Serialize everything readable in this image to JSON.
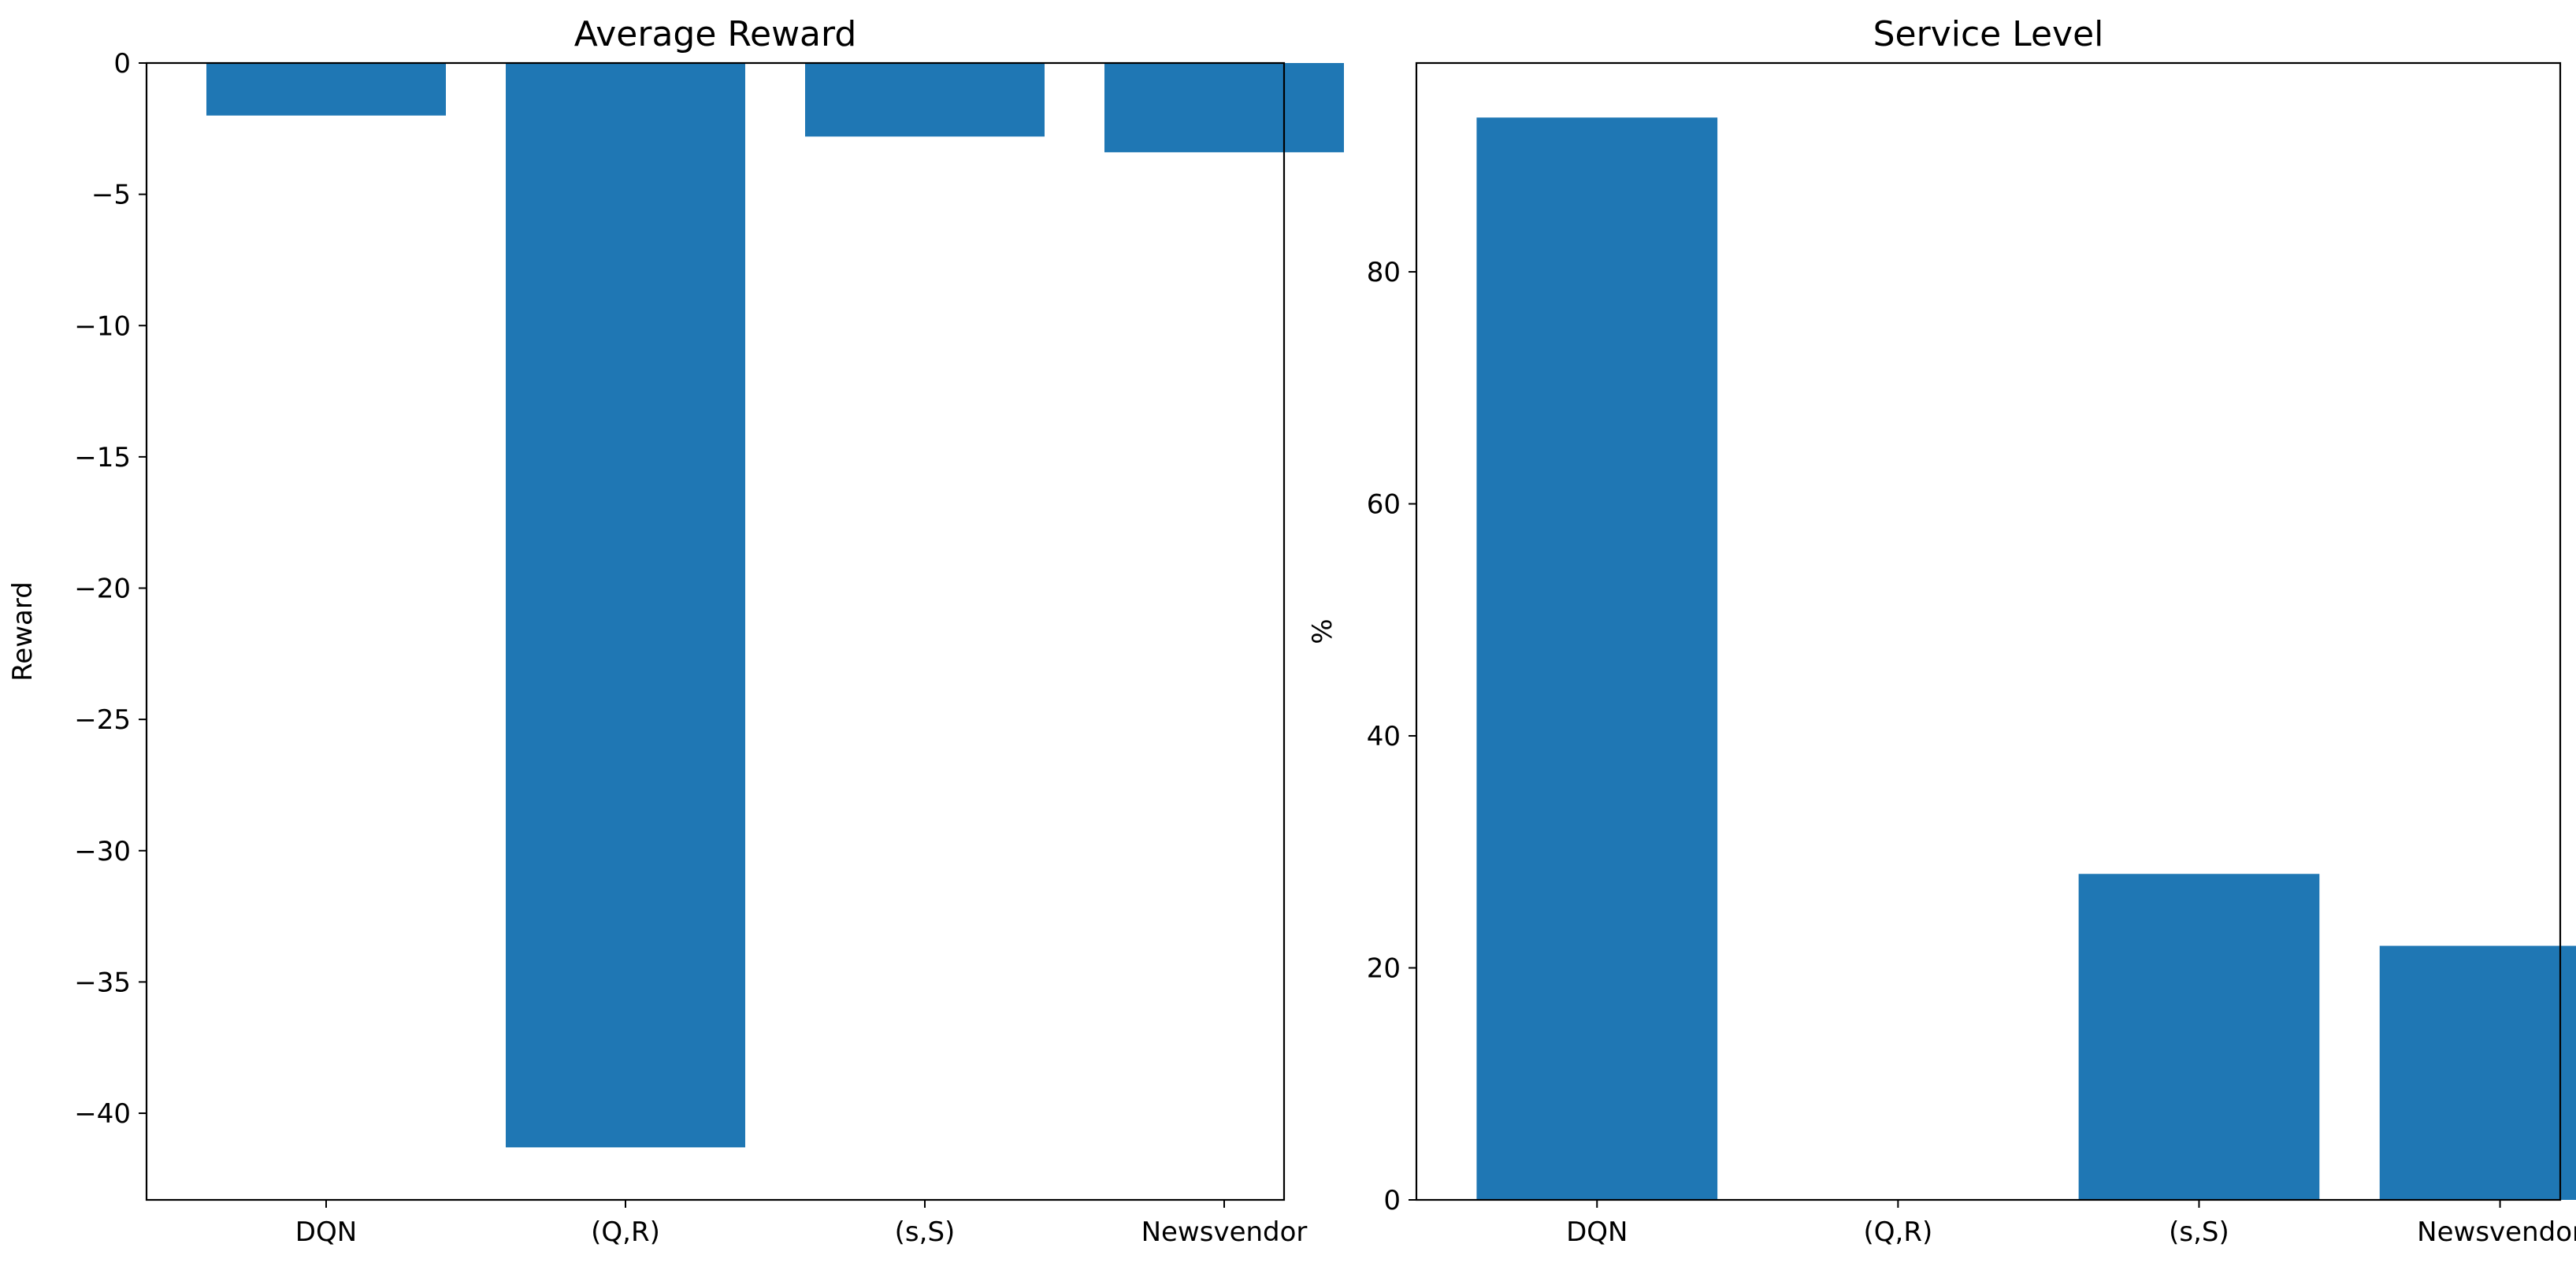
{
  "chart_data": [
    {
      "type": "bar",
      "title": "Average Reward",
      "xlabel": "",
      "ylabel": "Reward",
      "categories": [
        "DQN",
        "(Q,R)",
        "(s,S)",
        "Newsvendor"
      ],
      "values": [
        -2.0,
        -41.3,
        -2.8,
        -3.4
      ],
      "ylim": [
        -43.3,
        0
      ],
      "yticks": [
        0,
        -5,
        -10,
        -15,
        -20,
        -25,
        -30,
        -35,
        -40
      ],
      "ytick_labels": [
        "0",
        "−5",
        "−10",
        "−15",
        "−20",
        "−25",
        "−30",
        "−35",
        "−40"
      ],
      "grid": false,
      "bar_color": "#1f77b4"
    },
    {
      "type": "bar",
      "title": "Service Level",
      "xlabel": "",
      "ylabel": "%",
      "categories": [
        "DQN",
        "(Q,R)",
        "(s,S)",
        "Newsvendor"
      ],
      "values": [
        93.3,
        0,
        28.1,
        21.9
      ],
      "ylim": [
        0,
        98
      ],
      "yticks": [
        0,
        20,
        40,
        60,
        80
      ],
      "ytick_labels": [
        "0",
        "20",
        "40",
        "60",
        "80"
      ],
      "grid": false,
      "bar_color": "#1f77b4"
    }
  ]
}
